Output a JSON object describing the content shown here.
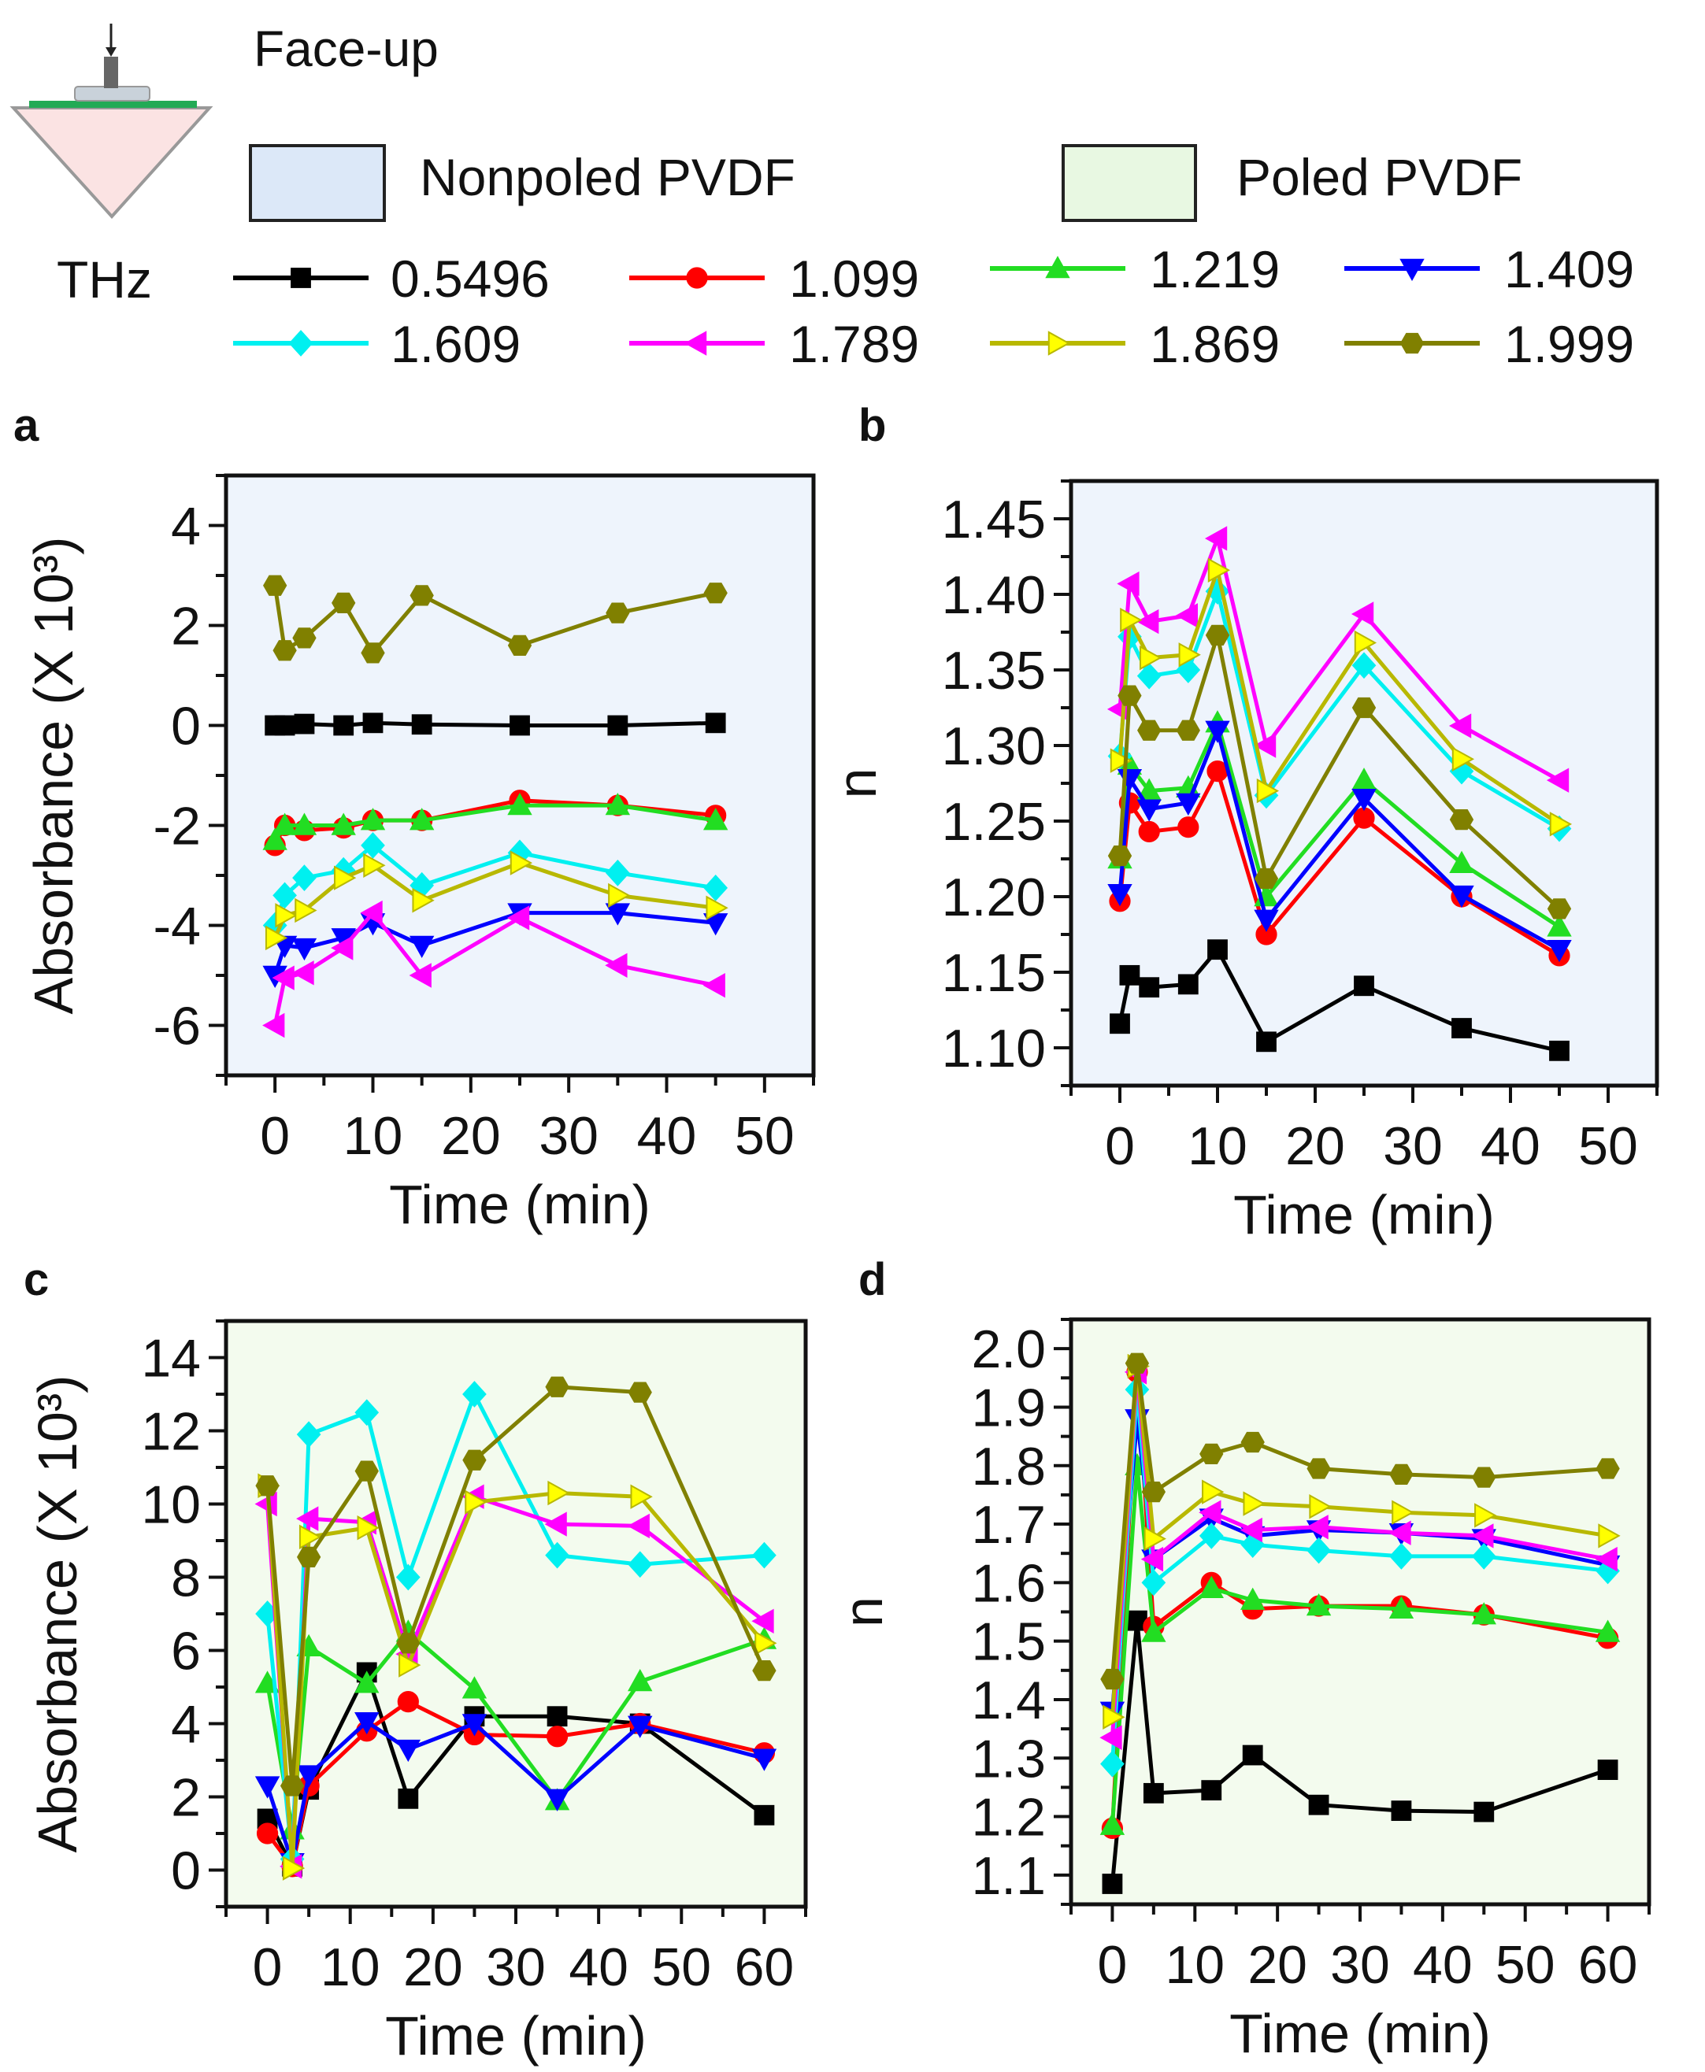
{
  "header": {
    "orientation_label": "Face-up",
    "unit_label": "THz",
    "materials": [
      {
        "label": "Nonpoled PVDF",
        "color": "#dce8f8"
      },
      {
        "label": "Poled PVDF",
        "color": "#e8f8e2"
      }
    ],
    "icon": "prism-sample-probe-icon"
  },
  "series_styles": [
    {
      "name": "0.5496",
      "color": "#000000",
      "fill": "#000000",
      "marker": "square"
    },
    {
      "name": "1.099",
      "color": "#ff0000",
      "fill": "#ff0000",
      "marker": "circle"
    },
    {
      "name": "1.219",
      "color": "#22dd22",
      "fill": "#22dd22",
      "marker": "triangle-up"
    },
    {
      "name": "1.409",
      "color": "#0000ff",
      "fill": "#0000ff",
      "marker": "triangle-down"
    },
    {
      "name": "1.609",
      "color": "#00f0f0",
      "fill": "#00f0f0",
      "marker": "diamond"
    },
    {
      "name": "1.789",
      "color": "#ff00ff",
      "fill": "#ff00ff",
      "marker": "triangle-left"
    },
    {
      "name": "1.869",
      "color": "#b8b800",
      "fill": "#ffff00",
      "marker": "triangle-right"
    },
    {
      "name": "1.999",
      "color": "#808000",
      "fill": "#808000",
      "marker": "hexagon"
    }
  ],
  "chart_data": [
    {
      "panel": "a",
      "type": "line",
      "background": "#eef4fc",
      "xlabel": "Time (min)",
      "ylabel": "Absorbance (X 10³)",
      "xlim": [
        -5,
        55
      ],
      "ylim": [
        -7,
        5
      ],
      "xticks": [
        "0",
        "10",
        "20",
        "30",
        "40",
        "50"
      ],
      "yticks": [
        "-6",
        "-4",
        "-2",
        "0",
        "2",
        "4"
      ],
      "x": [
        0,
        1,
        3,
        7,
        10,
        15,
        25,
        35,
        45
      ],
      "series": [
        {
          "name": "0.5496",
          "values": [
            0,
            0,
            0.03,
            0,
            0.05,
            0.02,
            0,
            0,
            0.05
          ]
        },
        {
          "name": "1.099",
          "values": [
            -2.4,
            -2.0,
            -2.1,
            -2.05,
            -1.9,
            -1.9,
            -1.5,
            -1.6,
            -1.8
          ]
        },
        {
          "name": "1.219",
          "values": [
            -2.3,
            -2.0,
            -2.0,
            -2.0,
            -1.9,
            -1.9,
            -1.6,
            -1.6,
            -1.9
          ]
        },
        {
          "name": "1.409",
          "values": [
            -5.0,
            -4.4,
            -4.45,
            -4.25,
            -3.95,
            -4.4,
            -3.75,
            -3.75,
            -3.95
          ]
        },
        {
          "name": "1.609",
          "values": [
            -4.0,
            -3.4,
            -3.05,
            -2.9,
            -2.4,
            -3.2,
            -2.55,
            -2.95,
            -3.25
          ]
        },
        {
          "name": "1.789",
          "values": [
            -6.0,
            -5.05,
            -4.95,
            -4.45,
            -3.75,
            -5.0,
            -3.85,
            -4.8,
            -5.2
          ]
        },
        {
          "name": "1.869",
          "values": [
            -4.25,
            -3.8,
            -3.7,
            -3.05,
            -2.8,
            -3.5,
            -2.75,
            -3.4,
            -3.65
          ]
        },
        {
          "name": "1.999",
          "values": [
            2.8,
            1.5,
            1.75,
            2.45,
            1.45,
            2.6,
            1.6,
            2.25,
            2.65
          ]
        }
      ]
    },
    {
      "panel": "b",
      "type": "line",
      "background": "#eef4fc",
      "xlabel": "Time (min)",
      "ylabel": "n",
      "xlim": [
        -5,
        55
      ],
      "ylim": [
        1.075,
        1.475
      ],
      "xticks": [
        "0",
        "10",
        "20",
        "30",
        "40",
        "50"
      ],
      "yticks": [
        "1.10",
        "1.15",
        "1.20",
        "1.25",
        "1.30",
        "1.35",
        "1.40",
        "1.45"
      ],
      "x": [
        0,
        1,
        3,
        7,
        10,
        15,
        25,
        35,
        45
      ],
      "series": [
        {
          "name": "0.5496",
          "values": [
            1.116,
            1.148,
            1.14,
            1.142,
            1.165,
            1.104,
            1.141,
            1.113,
            1.098
          ]
        },
        {
          "name": "1.099",
          "values": [
            1.197,
            1.262,
            1.243,
            1.246,
            1.283,
            1.175,
            1.252,
            1.2,
            1.161
          ]
        },
        {
          "name": "1.219",
          "values": [
            1.225,
            1.287,
            1.27,
            1.272,
            1.315,
            1.2,
            1.277,
            1.222,
            1.18
          ]
        },
        {
          "name": "1.409",
          "values": [
            1.202,
            1.278,
            1.258,
            1.262,
            1.31,
            1.185,
            1.265,
            1.201,
            1.165
          ]
        },
        {
          "name": "1.609",
          "values": [
            1.293,
            1.372,
            1.346,
            1.35,
            1.402,
            1.267,
            1.353,
            1.283,
            1.245
          ]
        },
        {
          "name": "1.789",
          "values": [
            1.324,
            1.407,
            1.382,
            1.386,
            1.437,
            1.3,
            1.387,
            1.313,
            1.277
          ]
        },
        {
          "name": "1.869",
          "values": [
            1.29,
            1.383,
            1.358,
            1.36,
            1.416,
            1.27,
            1.368,
            1.291,
            1.248
          ]
        },
        {
          "name": "1.999",
          "values": [
            1.227,
            1.333,
            1.31,
            1.31,
            1.373,
            1.212,
            1.325,
            1.251,
            1.192
          ]
        }
      ]
    },
    {
      "panel": "c",
      "type": "line",
      "background": "#f3fbee",
      "xlabel": "Time (min)",
      "ylabel": "Absorbance (X 10³)",
      "xlim": [
        -5,
        65
      ],
      "ylim": [
        -1,
        15
      ],
      "xticks": [
        "0",
        "10",
        "20",
        "30",
        "40",
        "50",
        "60"
      ],
      "yticks": [
        "0",
        "2",
        "4",
        "6",
        "8",
        "10",
        "12",
        "14"
      ],
      "x": [
        0,
        3,
        5,
        12,
        17,
        25,
        35,
        45,
        60
      ],
      "series": [
        {
          "name": "0.5496",
          "values": [
            1.4,
            0.1,
            2.2,
            5.4,
            1.95,
            4.2,
            4.2,
            4.0,
            1.5
          ]
        },
        {
          "name": "1.099",
          "values": [
            1.0,
            0.1,
            2.3,
            3.8,
            4.6,
            3.7,
            3.65,
            4.0,
            3.2
          ]
        },
        {
          "name": "1.219",
          "values": [
            5.1,
            1.1,
            6.1,
            5.1,
            6.5,
            4.95,
            1.9,
            5.15,
            6.3
          ]
        },
        {
          "name": "1.409",
          "values": [
            2.3,
            0.2,
            2.6,
            4.05,
            3.3,
            4.0,
            1.95,
            3.95,
            3.05
          ]
        },
        {
          "name": "1.609",
          "values": [
            7.0,
            0.3,
            11.9,
            12.5,
            8.0,
            13.0,
            8.6,
            8.35,
            8.6
          ]
        },
        {
          "name": "1.789",
          "values": [
            10.0,
            0.1,
            9.6,
            9.5,
            5.9,
            10.2,
            9.45,
            9.4,
            6.8
          ]
        },
        {
          "name": "1.869",
          "values": [
            10.5,
            0.05,
            9.1,
            9.35,
            5.6,
            10.05,
            10.3,
            10.2,
            6.2
          ]
        },
        {
          "name": "1.999",
          "values": [
            10.5,
            2.3,
            8.55,
            10.9,
            6.2,
            11.2,
            13.2,
            13.05,
            5.45
          ]
        }
      ]
    },
    {
      "panel": "d",
      "type": "line",
      "background": "#f3fbee",
      "xlabel": "Time (min)",
      "ylabel": "n",
      "xlim": [
        -5,
        65
      ],
      "ylim": [
        1.05,
        2.05
      ],
      "xticks": [
        "0",
        "10",
        "20",
        "30",
        "40",
        "50",
        "60"
      ],
      "yticks": [
        "1.1",
        "1.2",
        "1.3",
        "1.4",
        "1.5",
        "1.6",
        "1.7",
        "1.8",
        "1.9",
        "2.0"
      ],
      "x": [
        0,
        3,
        5,
        12,
        17,
        25,
        35,
        45,
        60
      ],
      "series": [
        {
          "name": "0.5496",
          "values": [
            1.085,
            1.535,
            1.24,
            1.245,
            1.305,
            1.22,
            1.21,
            1.208,
            1.28
          ]
        },
        {
          "name": "1.099",
          "values": [
            1.18,
            1.96,
            1.525,
            1.6,
            1.555,
            1.56,
            1.56,
            1.545,
            1.505
          ]
        },
        {
          "name": "1.219",
          "values": [
            1.185,
            1.8,
            1.515,
            1.59,
            1.57,
            1.56,
            1.555,
            1.545,
            1.515
          ]
        },
        {
          "name": "1.409",
          "values": [
            1.38,
            1.88,
            1.64,
            1.71,
            1.68,
            1.69,
            1.685,
            1.675,
            1.63
          ]
        },
        {
          "name": "1.609",
          "values": [
            1.29,
            1.93,
            1.6,
            1.68,
            1.665,
            1.655,
            1.645,
            1.645,
            1.62
          ]
        },
        {
          "name": "1.789",
          "values": [
            1.335,
            1.96,
            1.64,
            1.72,
            1.69,
            1.695,
            1.685,
            1.68,
            1.64
          ]
        },
        {
          "name": "1.869",
          "values": [
            1.37,
            1.97,
            1.675,
            1.755,
            1.735,
            1.73,
            1.72,
            1.715,
            1.68
          ]
        },
        {
          "name": "1.999",
          "values": [
            1.435,
            1.975,
            1.755,
            1.82,
            1.84,
            1.795,
            1.785,
            1.78,
            1.795
          ]
        }
      ]
    }
  ]
}
